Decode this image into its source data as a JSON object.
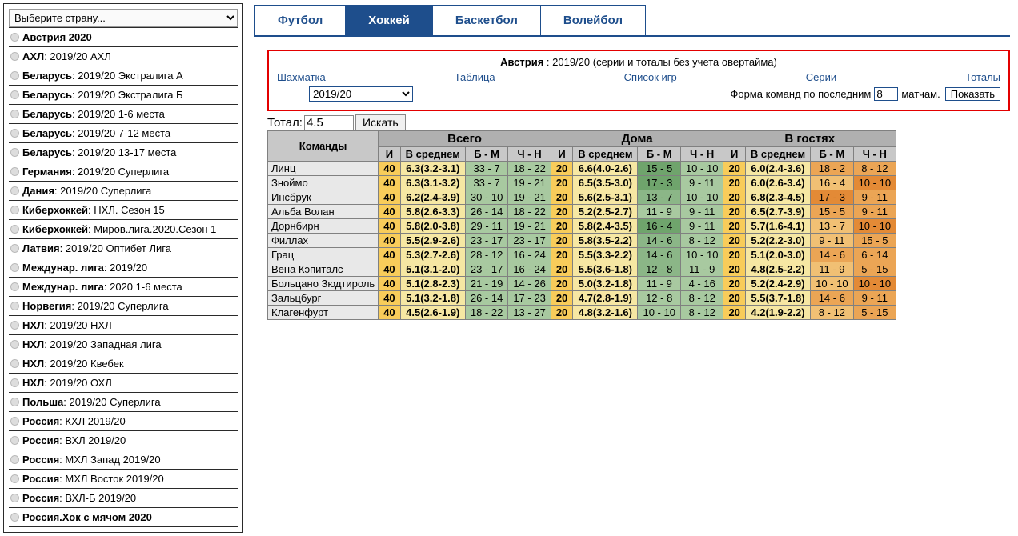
{
  "sidebar": {
    "select_placeholder": "Выберите страну...",
    "items": [
      {
        "bold": "Австрия 2020",
        "rest": ""
      },
      {
        "bold": "АХЛ",
        "rest": " : 2019/20 АХЛ"
      },
      {
        "bold": "Беларусь",
        "rest": " : 2019/20 Экстралига А"
      },
      {
        "bold": "Беларусь",
        "rest": " : 2019/20 Экстралига Б"
      },
      {
        "bold": "Беларусь",
        "rest": " : 2019/20 1-6 места"
      },
      {
        "bold": "Беларусь",
        "rest": " : 2019/20 7-12 места"
      },
      {
        "bold": "Беларусь",
        "rest": " : 2019/20 13-17 места"
      },
      {
        "bold": "Германия",
        "rest": " : 2019/20 Суперлига"
      },
      {
        "bold": "Дания",
        "rest": " : 2019/20 Суперлига"
      },
      {
        "bold": "Киберхоккей",
        "rest": " : НХЛ. Сезон 15"
      },
      {
        "bold": "Киберхоккей",
        "rest": " : Миров.лига.2020.Сезон 1"
      },
      {
        "bold": "Латвия",
        "rest": " : 2019/20 Оптибет Лига"
      },
      {
        "bold": "Междунар. лига",
        "rest": " : 2019/20"
      },
      {
        "bold": "Междунар. лига",
        "rest": " : 2020 1-6 места"
      },
      {
        "bold": "Норвегия",
        "rest": " : 2019/20 Суперлига"
      },
      {
        "bold": "НХЛ",
        "rest": " : 2019/20 НХЛ"
      },
      {
        "bold": "НХЛ",
        "rest": " : 2019/20 Западная лига"
      },
      {
        "bold": "НХЛ",
        "rest": " : 2019/20 Квебек"
      },
      {
        "bold": "НХЛ",
        "rest": " : 2019/20 ОХЛ"
      },
      {
        "bold": "Польша",
        "rest": " : 2019/20 Суперлига"
      },
      {
        "bold": "Россия",
        "rest": " : КХЛ 2019/20"
      },
      {
        "bold": "Россия",
        "rest": " : ВХЛ 2019/20"
      },
      {
        "bold": "Россия",
        "rest": " : МХЛ Запад 2019/20"
      },
      {
        "bold": "Россия",
        "rest": " : МХЛ Восток 2019/20"
      },
      {
        "bold": "Россия",
        "rest": " : ВХЛ-Б 2019/20"
      },
      {
        "bold": "Россия.Хок с мячом 2020",
        "rest": ""
      }
    ]
  },
  "tabs": [
    "Футбол",
    "Хоккей",
    "Баскетбол",
    "Волейбол"
  ],
  "active_tab": 1,
  "filter": {
    "title_bold": "Австрия",
    "title_rest": " : 2019/20 (серии и тоталы без учета овертайма)",
    "links": [
      "Шахматка",
      "Таблица",
      "Список игр",
      "Серии",
      "Тоталы"
    ],
    "season": "2019/20",
    "form_label_before": "Форма команд по последним",
    "form_value": "8",
    "form_label_after": "матчам.",
    "show_btn": "Показать"
  },
  "total": {
    "label": "Тотал:",
    "value": "4.5",
    "search": "Искать"
  },
  "table": {
    "groups": [
      "Всего",
      "Дома",
      "В гостях"
    ],
    "team_header": "Команды",
    "sub": [
      "И",
      "В среднем",
      "Б - М",
      "Ч - Н"
    ],
    "rows": [
      {
        "team": "Линц",
        "t": [
          "40",
          "6.3(3.2-3.1)",
          "33 - 7",
          "18 - 22"
        ],
        "h": [
          "20",
          "6.6(4.0-2.6)",
          "15 - 5",
          "10 - 10"
        ],
        "a": [
          "20",
          "6.0(2.4-3.6)",
          "18 - 2",
          "8 - 12"
        ],
        "ct": [
          "c-green",
          "c-green"
        ],
        "ch": [
          "c-green-dd",
          "c-green"
        ],
        "ca": [
          "c-orange",
          "c-orange"
        ]
      },
      {
        "team": "Зноймо",
        "t": [
          "40",
          "6.3(3.1-3.2)",
          "33 - 7",
          "19 - 21"
        ],
        "h": [
          "20",
          "6.5(3.5-3.0)",
          "17 - 3",
          "9 - 11"
        ],
        "a": [
          "20",
          "6.0(2.6-3.4)",
          "16 - 4",
          "10 - 10"
        ],
        "ct": [
          "c-green",
          "c-green"
        ],
        "ch": [
          "c-green-dd",
          "c-green"
        ],
        "ca": [
          "c-orange-l",
          "c-orange-d"
        ]
      },
      {
        "team": "Инсбрук",
        "t": [
          "40",
          "6.2(2.4-3.9)",
          "30 - 10",
          "19 - 21"
        ],
        "h": [
          "20",
          "5.6(2.5-3.1)",
          "13 - 7",
          "10 - 10"
        ],
        "a": [
          "20",
          "6.8(2.3-4.5)",
          "17 - 3",
          "9 - 11"
        ],
        "ct": [
          "c-green",
          "c-green"
        ],
        "ch": [
          "c-green-d",
          "c-green"
        ],
        "ca": [
          "c-orange-d",
          "c-orange"
        ]
      },
      {
        "team": "Альба Волан",
        "t": [
          "40",
          "5.8(2.6-3.3)",
          "26 - 14",
          "18 - 22"
        ],
        "h": [
          "20",
          "5.2(2.5-2.7)",
          "11 - 9",
          "9 - 11"
        ],
        "a": [
          "20",
          "6.5(2.7-3.9)",
          "15 - 5",
          "9 - 11"
        ],
        "ct": [
          "c-green",
          "c-green"
        ],
        "ch": [
          "c-green",
          "c-green"
        ],
        "ca": [
          "c-orange",
          "c-orange"
        ]
      },
      {
        "team": "Дорнбирн",
        "t": [
          "40",
          "5.8(2.0-3.8)",
          "29 - 11",
          "19 - 21"
        ],
        "h": [
          "20",
          "5.8(2.4-3.5)",
          "16 - 4",
          "9 - 11"
        ],
        "a": [
          "20",
          "5.7(1.6-4.1)",
          "13 - 7",
          "10 - 10"
        ],
        "ct": [
          "c-green",
          "c-green"
        ],
        "ch": [
          "c-green-dd",
          "c-green"
        ],
        "ca": [
          "c-orange-l",
          "c-orange-d"
        ]
      },
      {
        "team": "Филлах",
        "t": [
          "40",
          "5.5(2.9-2.6)",
          "23 - 17",
          "23 - 17"
        ],
        "h": [
          "20",
          "5.8(3.5-2.2)",
          "14 - 6",
          "8 - 12"
        ],
        "a": [
          "20",
          "5.2(2.2-3.0)",
          "9 - 11",
          "15 - 5"
        ],
        "ct": [
          "c-green",
          "c-green"
        ],
        "ch": [
          "c-green-d",
          "c-green"
        ],
        "ca": [
          "c-orange-l",
          "c-orange"
        ]
      },
      {
        "team": "Грац",
        "t": [
          "40",
          "5.3(2.7-2.6)",
          "28 - 12",
          "16 - 24"
        ],
        "h": [
          "20",
          "5.5(3.3-2.2)",
          "14 - 6",
          "10 - 10"
        ],
        "a": [
          "20",
          "5.1(2.0-3.0)",
          "14 - 6",
          "6 - 14"
        ],
        "ct": [
          "c-green",
          "c-green"
        ],
        "ch": [
          "c-green-d",
          "c-green"
        ],
        "ca": [
          "c-orange",
          "c-orange"
        ]
      },
      {
        "team": "Вена Кэпиталс",
        "t": [
          "40",
          "5.1(3.1-2.0)",
          "23 - 17",
          "16 - 24"
        ],
        "h": [
          "20",
          "5.5(3.6-1.8)",
          "12 - 8",
          "11 - 9"
        ],
        "a": [
          "20",
          "4.8(2.5-2.2)",
          "11 - 9",
          "5 - 15"
        ],
        "ct": [
          "c-green",
          "c-green"
        ],
        "ch": [
          "c-green-d",
          "c-green"
        ],
        "ca": [
          "c-orange-l",
          "c-orange"
        ]
      },
      {
        "team": "Больцано Зюдтироль",
        "t": [
          "40",
          "5.1(2.8-2.3)",
          "21 - 19",
          "14 - 26"
        ],
        "h": [
          "20",
          "5.0(3.2-1.8)",
          "11 - 9",
          "4 - 16"
        ],
        "a": [
          "20",
          "5.2(2.4-2.9)",
          "10 - 10",
          "10 - 10"
        ],
        "ct": [
          "c-green",
          "c-green"
        ],
        "ch": [
          "c-green",
          "c-green"
        ],
        "ca": [
          "c-orange-l",
          "c-orange-d"
        ]
      },
      {
        "team": "Зальцбург",
        "t": [
          "40",
          "5.1(3.2-1.8)",
          "26 - 14",
          "17 - 23"
        ],
        "h": [
          "20",
          "4.7(2.8-1.9)",
          "12 - 8",
          "8 - 12"
        ],
        "a": [
          "20",
          "5.5(3.7-1.8)",
          "14 - 6",
          "9 - 11"
        ],
        "ct": [
          "c-green",
          "c-green"
        ],
        "ch": [
          "c-green",
          "c-green"
        ],
        "ca": [
          "c-orange",
          "c-orange"
        ]
      },
      {
        "team": "Клагенфурт",
        "t": [
          "40",
          "4.5(2.6-1.9)",
          "18 - 22",
          "13 - 27"
        ],
        "h": [
          "20",
          "4.8(3.2-1.6)",
          "10 - 10",
          "8 - 12"
        ],
        "a": [
          "20",
          "4.2(1.9-2.2)",
          "8 - 12",
          "5 - 15"
        ],
        "ct": [
          "c-green",
          "c-green"
        ],
        "ch": [
          "c-green",
          "c-green"
        ],
        "ca": [
          "c-orange-l",
          "c-orange"
        ]
      }
    ]
  }
}
